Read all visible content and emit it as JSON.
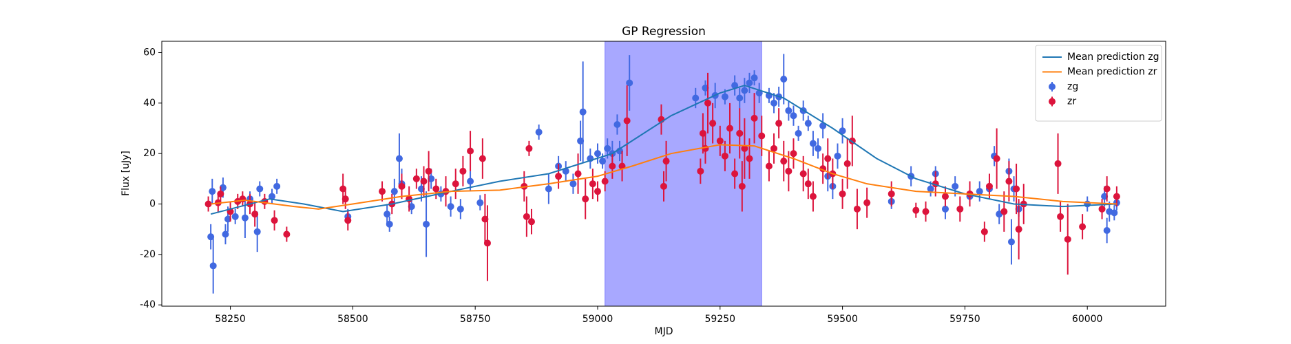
{
  "chart_data": {
    "type": "errorbar",
    "title": "GP Regression",
    "x_label": "MJD",
    "y_label": "Flux [uJy]",
    "xlim": [
      58110,
      60160
    ],
    "ylim": [
      -40.5,
      64.5
    ],
    "xticks": [
      58250,
      58500,
      58750,
      59000,
      59250,
      59500,
      59750,
      60000
    ],
    "yticks": [
      -40,
      -20,
      0,
      20,
      40,
      60
    ],
    "legend": "upper right",
    "span": {
      "x": [
        59015,
        59335
      ],
      "color": "#0000ff"
    },
    "series": [
      {
        "name": "Mean prediction zg",
        "type": "line",
        "color": "#1f77b4",
        "x": [
          58210,
          58270,
          58330,
          58400,
          58480,
          58580,
          58700,
          58800,
          58900,
          59030,
          59150,
          59250,
          59300,
          59380,
          59480,
          59570,
          59650,
          59750,
          59850,
          59950,
          60060
        ],
        "values": [
          -4,
          -1,
          2,
          0,
          -3,
          0,
          5,
          9,
          12,
          20,
          35,
          44,
          47,
          42,
          30,
          18,
          10,
          4,
          0,
          -1,
          0
        ]
      },
      {
        "name": "Mean prediction zr",
        "type": "line",
        "color": "#ff7f0e",
        "x": [
          58210,
          58280,
          58380,
          58430,
          58500,
          58600,
          58700,
          58800,
          58900,
          59000,
          59070,
          59150,
          59250,
          59320,
          59400,
          59480,
          59550,
          59650,
          59750,
          59850,
          59950,
          60060
        ],
        "values": [
          0,
          1.5,
          -1,
          -2,
          0,
          3,
          5,
          5.5,
          8,
          11,
          15,
          20,
          23.5,
          23,
          18,
          12,
          8,
          5,
          4,
          3,
          1,
          0
        ]
      },
      {
        "name": "zg",
        "type": "errorbar",
        "color": "#4169e1",
        "x": [
          58210,
          58215,
          58213,
          58235,
          58240,
          58245,
          58260,
          58280,
          58290,
          58305,
          58310,
          58335,
          58345,
          58490,
          58570,
          58575,
          58585,
          58595,
          58600,
          58620,
          58640,
          58650,
          58660,
          58680,
          58700,
          58720,
          58740,
          58760,
          58880,
          58900,
          58920,
          58935,
          58950,
          58965,
          58970,
          58985,
          59000,
          59010,
          59020,
          59030,
          59040,
          59045,
          59065,
          59200,
          59220,
          59240,
          59260,
          59280,
          59290,
          59300,
          59310,
          59320,
          59330,
          59350,
          59360,
          59370,
          59380,
          59390,
          59400,
          59410,
          59420,
          59430,
          59440,
          59450,
          59460,
          59470,
          59480,
          59490,
          59500,
          59600,
          59640,
          59680,
          59690,
          59710,
          59730,
          59760,
          59780,
          59800,
          59810,
          59820,
          59840,
          59845,
          59850,
          59860,
          60000,
          60035,
          60040,
          60045,
          60055,
          60060
        ],
        "values": [
          -13,
          -24.5,
          5,
          6.5,
          -12,
          -6,
          -5,
          -5.5,
          2,
          -11,
          6,
          3,
          7,
          -5,
          -4,
          -8,
          5,
          18,
          8,
          -1,
          6,
          -8,
          10,
          4,
          -1,
          -2,
          9,
          0.5,
          28.5,
          6,
          15,
          13,
          8,
          25,
          36.5,
          18,
          20,
          17,
          22,
          20,
          31.5,
          21,
          48,
          42,
          46,
          43,
          42.5,
          47,
          42,
          45,
          48,
          50,
          44,
          43,
          40,
          42.5,
          49.5,
          37,
          35,
          28,
          37,
          32,
          24,
          22,
          31,
          11,
          7,
          19,
          29,
          1,
          11,
          6,
          12,
          -2,
          7,
          3,
          5,
          6,
          19,
          -4,
          13,
          -15,
          6,
          -2,
          0,
          3,
          -10.5,
          -3,
          -3.5,
          0.5
        ],
        "errors": [
          5,
          11,
          5,
          4,
          4,
          5,
          3,
          8,
          3,
          8,
          3,
          3,
          3,
          3,
          4,
          3,
          5,
          10,
          6,
          3,
          5,
          13,
          4,
          3,
          4,
          4,
          4,
          3,
          3,
          6,
          4,
          4,
          4,
          8,
          20,
          4,
          4,
          3,
          4,
          5,
          4,
          4,
          11,
          4,
          3,
          5,
          3,
          4,
          4,
          5,
          4,
          3,
          4,
          3,
          4,
          4,
          10,
          4,
          4,
          3,
          4,
          3,
          5,
          4,
          5,
          6,
          5,
          5,
          5,
          3,
          4,
          3,
          3,
          4,
          4,
          3,
          4,
          3,
          4,
          4,
          5,
          9,
          5,
          3,
          3,
          4,
          5,
          4,
          3,
          3
        ]
      },
      {
        "name": "zr",
        "type": "errorbar",
        "color": "#dc143c",
        "x": [
          58205,
          58225,
          58230,
          58250,
          58265,
          58275,
          58290,
          58300,
          58320,
          58340,
          58365,
          58480,
          58485,
          58490,
          58560,
          58580,
          58600,
          58615,
          58630,
          58645,
          58655,
          58670,
          58690,
          58710,
          58725,
          58740,
          58765,
          58770,
          58775,
          58850,
          58855,
          58860,
          58865,
          58920,
          58960,
          58975,
          58990,
          59000,
          59015,
          59030,
          59050,
          59060,
          59130,
          59135,
          59140,
          59210,
          59215,
          59220,
          59225,
          59235,
          59250,
          59260,
          59270,
          59280,
          59290,
          59295,
          59300,
          59310,
          59320,
          59335,
          59350,
          59360,
          59370,
          59380,
          59390,
          59400,
          59420,
          59430,
          59440,
          59460,
          59470,
          59480,
          59500,
          59510,
          59520,
          59530,
          59550,
          59600,
          59650,
          59670,
          59690,
          59710,
          59740,
          59760,
          59790,
          59800,
          59815,
          59830,
          59840,
          59855,
          59860,
          59870,
          59940,
          59945,
          59960,
          59990,
          60030,
          60040,
          60060
        ],
        "values": [
          0,
          0.5,
          4,
          -3,
          1,
          2,
          0,
          -4,
          1,
          -6.5,
          -12,
          6,
          2,
          -6.5,
          5,
          0,
          7,
          2,
          10,
          9,
          13,
          6,
          5,
          8,
          13,
          21,
          18,
          -6,
          -15.5,
          7,
          -5,
          22,
          -7,
          11,
          12,
          2,
          8,
          5,
          9,
          15,
          15,
          33,
          33.5,
          7,
          17,
          13,
          28,
          22,
          40,
          32,
          25,
          19,
          30,
          12,
          28,
          7,
          22,
          18,
          34,
          27,
          15,
          22,
          32,
          17,
          13,
          20,
          12,
          8,
          3,
          14,
          18,
          12,
          4,
          16,
          25,
          -2,
          0.5,
          4,
          -2.5,
          -3,
          8,
          3,
          -2,
          4,
          -11,
          7,
          18,
          -3,
          9,
          6,
          -10,
          0,
          16,
          -5,
          -14,
          -9,
          -2,
          6,
          3
        ],
        "errors": [
          3,
          4,
          3,
          4,
          3,
          3,
          4,
          5,
          3,
          4,
          3,
          6,
          4,
          4,
          4,
          4,
          5,
          5,
          4,
          6,
          8,
          4,
          6,
          6,
          6,
          8,
          8,
          10,
          15,
          6,
          8,
          3,
          5,
          5,
          8,
          8,
          6,
          4,
          4,
          5,
          6,
          14,
          6,
          6,
          8,
          5,
          8,
          6,
          12,
          8,
          6,
          6,
          10,
          6,
          10,
          10,
          12,
          8,
          10,
          8,
          6,
          6,
          6,
          8,
          8,
          6,
          7,
          6,
          6,
          6,
          8,
          6,
          6,
          10,
          10,
          8,
          6,
          5,
          3,
          4,
          5,
          4,
          5,
          5,
          4,
          5,
          12,
          8,
          8,
          10,
          12,
          8,
          12,
          6,
          14,
          5,
          4,
          5,
          4
        ]
      }
    ]
  }
}
